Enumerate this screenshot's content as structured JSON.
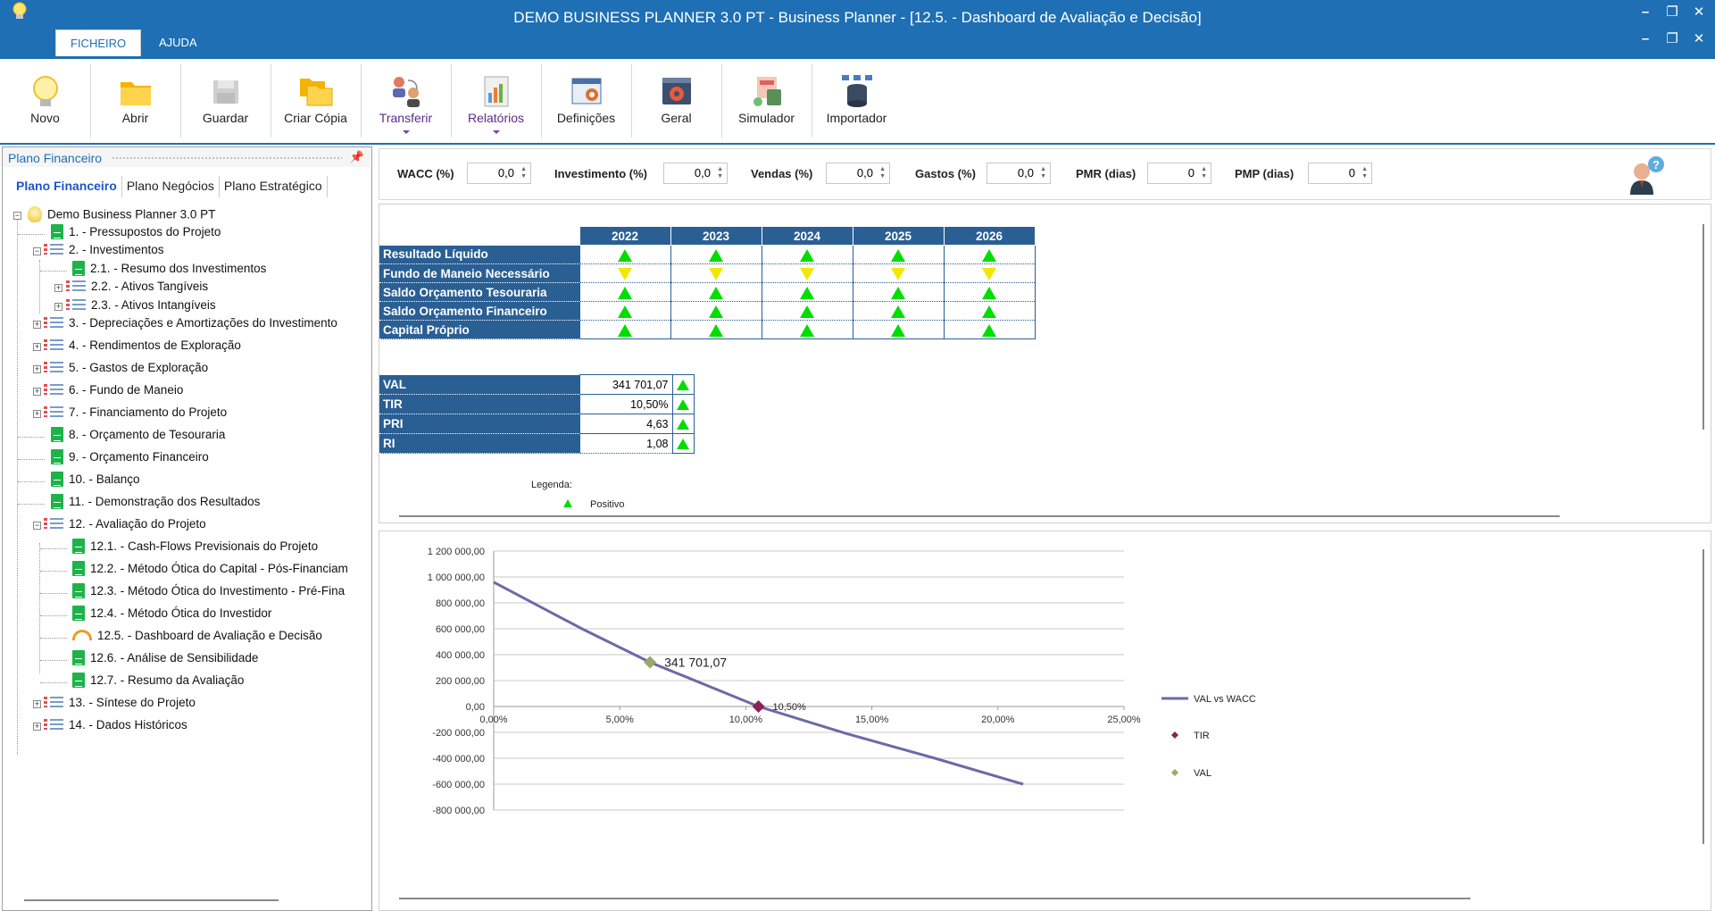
{
  "window": {
    "title": "DEMO BUSINESS PLANNER 3.0 PT - Business Planner - [12.5. - Dashboard de Avaliação e Decisão]",
    "controls": [
      "–",
      "❐",
      "✕"
    ]
  },
  "menu": {
    "tabs": [
      "FICHEIRO",
      "AJUDA"
    ],
    "active": "FICHEIRO"
  },
  "ribbon": {
    "buttons": [
      {
        "label": "Novo",
        "icon": "lightbulb-icon"
      },
      {
        "label": "Abrir",
        "icon": "folder-icon"
      },
      {
        "label": "Guardar",
        "icon": "save-icon"
      },
      {
        "label": "Criar Cópia",
        "icon": "copy-folder-icon"
      },
      {
        "label": "Transferir",
        "icon": "transfer-users-icon"
      },
      {
        "label": "Relatórios",
        "icon": "reports-icon"
      },
      {
        "label": "Definições",
        "icon": "settings-grid-icon"
      },
      {
        "label": "Geral",
        "icon": "gear-window-icon"
      },
      {
        "label": "Simulador",
        "icon": "calculator-icon"
      },
      {
        "label": "Importador",
        "icon": "database-icon"
      }
    ]
  },
  "left_panel": {
    "title": "Plano Financeiro",
    "tabs": [
      "Plano Financeiro",
      "Plano Negócios",
      "Plano Estratégico"
    ],
    "tree": [
      {
        "label": "Demo Business Planner 3.0 PT"
      },
      {
        "label": "1. - Pressupostos do Projeto"
      },
      {
        "label": "2. - Investimentos"
      },
      {
        "label": "2.1. - Resumo dos Investimentos"
      },
      {
        "label": "2.2. - Ativos Tangíveis"
      },
      {
        "label": "2.3. - Ativos Intangíveis"
      },
      {
        "label": "3. - Depreciações e Amortizações do Investimento"
      },
      {
        "label": "4. - Rendimentos de Exploração"
      },
      {
        "label": "5. - Gastos de Exploração"
      },
      {
        "label": "6. - Fundo de Maneio"
      },
      {
        "label": "7. - Financiamento do Projeto"
      },
      {
        "label": "8. - Orçamento de Tesouraria"
      },
      {
        "label": "9. - Orçamento Financeiro"
      },
      {
        "label": "10. - Balanço"
      },
      {
        "label": "11. - Demonstração dos Resultados"
      },
      {
        "label": "12. - Avaliação do Projeto"
      },
      {
        "label": "12.1. - Cash-Flows Previsionais do Projeto"
      },
      {
        "label": "12.2. - Método Ótica do Capital - Pós-Financiam"
      },
      {
        "label": "12.3. - Método Ótica do Investimento - Pré-Fina"
      },
      {
        "label": "12.4. - Método Ótica do Investidor"
      },
      {
        "label": "12.5. - Dashboard de Avaliação e Decisão"
      },
      {
        "label": "12.6. - Análise de Sensibilidade"
      },
      {
        "label": "12.7. - Resumo da Avaliação"
      },
      {
        "label": "13. - Síntese do Projeto"
      },
      {
        "label": "14. - Dados Históricos"
      }
    ]
  },
  "params": [
    {
      "label": "WACC (%)",
      "value": "0,0"
    },
    {
      "label": "Investimento (%)",
      "value": "0,0"
    },
    {
      "label": "Vendas (%)",
      "value": "0,0"
    },
    {
      "label": "Gastos (%)",
      "value": "0,0"
    },
    {
      "label": "PMR (dias)",
      "value": "0"
    },
    {
      "label": "PMP (dias)",
      "value": "0"
    }
  ],
  "indicators": {
    "years": [
      "2022",
      "2023",
      "2024",
      "2025",
      "2026"
    ],
    "rows": [
      {
        "label": "Resultado Líquido",
        "trend": [
          "up",
          "up",
          "up",
          "up",
          "up"
        ]
      },
      {
        "label": "Fundo de Maneio Necessário",
        "trend": [
          "down",
          "down",
          "down",
          "down",
          "down"
        ]
      },
      {
        "label": "Saldo Orçamento Tesouraria",
        "trend": [
          "up",
          "up",
          "up",
          "up",
          "up"
        ]
      },
      {
        "label": "Saldo Orçamento Financeiro",
        "trend": [
          "up",
          "up",
          "up",
          "up",
          "up"
        ]
      },
      {
        "label": "Capital Próprio",
        "trend": [
          "up",
          "up",
          "up",
          "up",
          "up"
        ]
      }
    ]
  },
  "kpis": [
    {
      "label": "VAL",
      "value": "341 701,07",
      "trend": "up"
    },
    {
      "label": "TIR",
      "value": "10,50%",
      "trend": "up"
    },
    {
      "label": "PRI",
      "value": "4,63",
      "trend": "up"
    },
    {
      "label": "RI",
      "value": "1,08",
      "trend": "up"
    }
  ],
  "legend": {
    "title": "Legenda:",
    "items": [
      "Positivo"
    ]
  },
  "colors": {
    "titlebar": "#1e6fb3",
    "header": "#2a5f94",
    "up": "#00dd00",
    "down": "#f0e800",
    "series_line": "#6a6aa8",
    "tir_marker": "#8b2252",
    "val_marker": "#9aa86a"
  },
  "chart_data": {
    "type": "line",
    "y_ticks": [
      "1 200 000,00",
      "1 000 000,00",
      "800 000,00",
      "600 000,00",
      "400 000,00",
      "200 000,00",
      "0,00",
      "-200 000,00",
      "-400 000,00",
      "-600 000,00",
      "-800 000,00"
    ],
    "x_ticks": [
      "0,00%",
      "5,00%",
      "10,00%",
      "15,00%",
      "20,00%",
      "25,00%"
    ],
    "xlim": [
      0,
      25
    ],
    "ylim": [
      -800000,
      1200000
    ],
    "grid": true,
    "legend_placement": "right",
    "series": [
      {
        "name": "VAL vs WACC",
        "x": [
          0,
          3.5,
          6.2,
          10.5,
          14,
          17.5,
          21
        ],
        "y": [
          960000,
          600000,
          341701.07,
          0,
          -210000,
          -400000,
          -600000
        ]
      },
      {
        "name": "TIR",
        "x": [
          10.5
        ],
        "y": [
          0
        ]
      },
      {
        "name": "VAL",
        "x": [
          6.2
        ],
        "y": [
          341701.07
        ]
      }
    ],
    "annotations": [
      {
        "text": "341 701,07",
        "x": 6.2,
        "y": 341701.07
      },
      {
        "text": "10,50%",
        "x": 10.5,
        "y": 0
      }
    ]
  }
}
